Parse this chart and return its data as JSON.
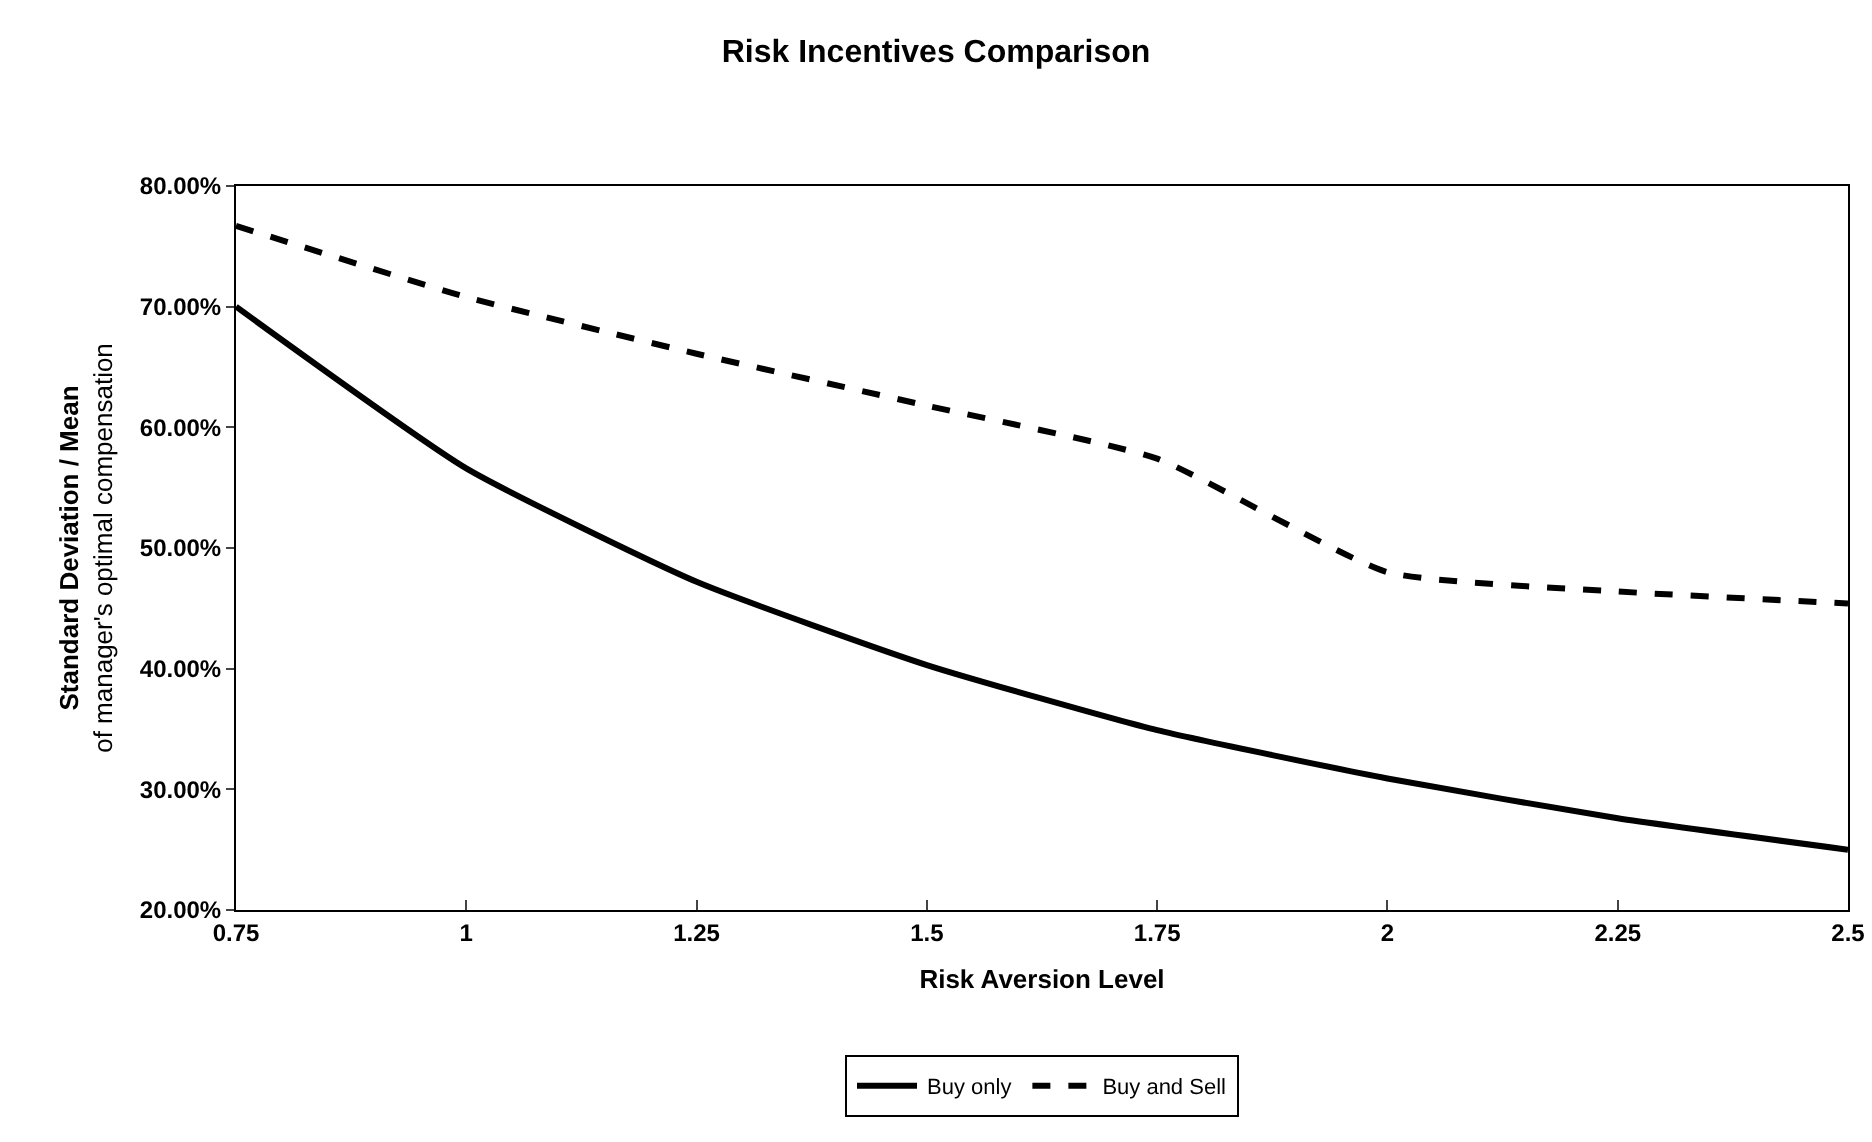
{
  "chart_data": {
    "type": "line",
    "title": "Risk Incentives Comparison",
    "xlabel": "Risk Aversion Level",
    "ylabel": "Standard Deviation / Mean\nof manager's optimal compensation",
    "x": [
      0.75,
      1,
      1.25,
      1.5,
      1.75,
      2,
      2.25,
      2.5
    ],
    "series": [
      {
        "name": "Buy only",
        "color": "#000000",
        "line_style": "solid",
        "values": [
          70.0,
          56.6,
          47.2,
          40.3,
          34.9,
          30.9,
          27.6,
          25.0
        ]
      },
      {
        "name": "Buy and Sell",
        "color": "#000000",
        "line_style": "dashed",
        "values": [
          76.7,
          70.8,
          66.1,
          61.8,
          57.4,
          48.0,
          46.4,
          45.4
        ]
      }
    ],
    "xlim": [
      0.75,
      2.5
    ],
    "xticks": [
      0.75,
      1,
      1.25,
      1.5,
      1.75,
      2,
      2.25,
      2.5
    ],
    "ylim": [
      20,
      80
    ],
    "yticks": [
      {
        "value": 20,
        "label": "20.00%"
      },
      {
        "value": 30,
        "label": "30.00%"
      },
      {
        "value": 40,
        "label": "40.00%"
      },
      {
        "value": 50,
        "label": "50.00%"
      },
      {
        "value": 60,
        "label": "60.00%"
      },
      {
        "value": 70,
        "label": "70.00%"
      },
      {
        "value": 80,
        "label": "80.00%"
      }
    ],
    "grid": false,
    "legend": "bottom",
    "marker": "none"
  }
}
